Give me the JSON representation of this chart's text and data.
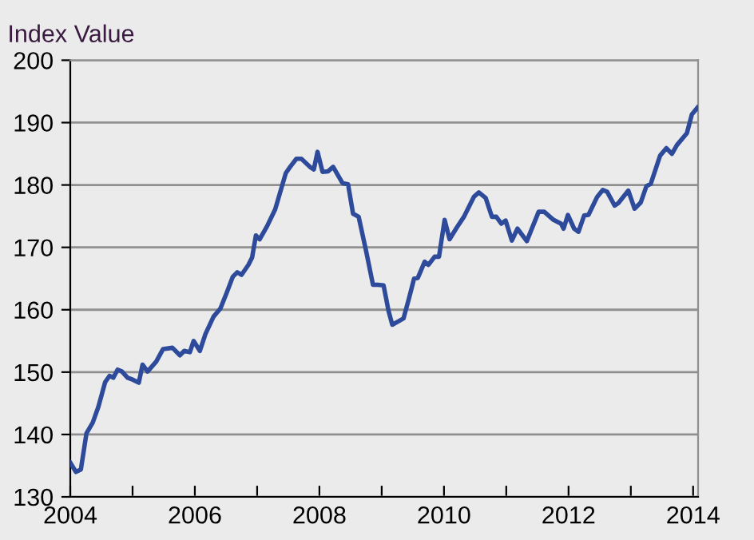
{
  "chart_data": {
    "type": "line",
    "ylabel": "Index Value",
    "x": [
      2004.0,
      2004.09,
      2004.17,
      2004.26,
      2004.36,
      2004.45,
      2004.56,
      2004.63,
      2004.69,
      2004.76,
      2004.83,
      2004.92,
      2005.0,
      2005.1,
      2005.16,
      2005.24,
      2005.38,
      2005.49,
      2005.64,
      2005.76,
      2005.83,
      2005.92,
      2005.98,
      2006.08,
      2006.17,
      2006.3,
      2006.41,
      2006.51,
      2006.61,
      2006.68,
      2006.75,
      2006.86,
      2006.92,
      2006.98,
      2007.04,
      2007.16,
      2007.29,
      2007.46,
      2007.53,
      2007.63,
      2007.71,
      2007.86,
      2007.91,
      2007.97,
      2008.05,
      2008.14,
      2008.22,
      2008.37,
      2008.46,
      2008.54,
      2008.63,
      2008.75,
      2008.86,
      2008.94,
      2009.03,
      2009.11,
      2009.17,
      2009.26,
      2009.35,
      2009.44,
      2009.52,
      2009.58,
      2009.69,
      2009.75,
      2009.85,
      2009.92,
      2010.01,
      2010.09,
      2010.2,
      2010.32,
      2010.48,
      2010.56,
      2010.67,
      2010.77,
      2010.84,
      2010.92,
      2010.99,
      2011.09,
      2011.18,
      2011.33,
      2011.52,
      2011.61,
      2011.76,
      2011.88,
      2011.92,
      2011.99,
      2012.09,
      2012.16,
      2012.25,
      2012.32,
      2012.46,
      2012.55,
      2012.62,
      2012.74,
      2012.8,
      2012.96,
      2013.06,
      2013.16,
      2013.25,
      2013.32,
      2013.47,
      2013.57,
      2013.66,
      2013.74,
      2013.9,
      2013.98,
      2014.07
    ],
    "series": [
      {
        "color": "#2e4a9a",
        "values": [
          135.5,
          134.0,
          134.4,
          140.2,
          141.9,
          144.4,
          148.4,
          149.4,
          149.1,
          150.4,
          150.1,
          149.1,
          148.8,
          148.3,
          151.2,
          150.1,
          151.7,
          153.7,
          153.9,
          152.7,
          153.4,
          153.2,
          155.0,
          153.4,
          156.1,
          158.9,
          160.2,
          162.7,
          165.3,
          166.0,
          165.6,
          167.2,
          168.4,
          171.9,
          171.3,
          173.4,
          176.1,
          181.9,
          182.9,
          184.2,
          184.2,
          182.8,
          182.5,
          185.3,
          182.1,
          182.2,
          182.9,
          180.3,
          180.1,
          175.4,
          174.9,
          169.4,
          164.0,
          164.0,
          163.9,
          159.8,
          157.6,
          158.1,
          158.6,
          161.9,
          165.0,
          165.1,
          167.7,
          167.2,
          168.5,
          168.5,
          174.4,
          171.3,
          173.1,
          174.9,
          178.1,
          178.8,
          177.9,
          174.9,
          174.9,
          173.8,
          174.3,
          171.1,
          173.0,
          171.0,
          175.7,
          175.7,
          174.4,
          173.8,
          173.0,
          175.2,
          173.0,
          172.5,
          175.1,
          175.2,
          178.1,
          179.2,
          178.9,
          176.7,
          177.1,
          179.1,
          176.2,
          177.2,
          179.8,
          180.2,
          184.7,
          185.9,
          185.0,
          186.4,
          188.3,
          191.3,
          192.4
        ]
      }
    ],
    "xlim": [
      2004,
      2014.08
    ],
    "xticks": [
      2004,
      {
        "value": 2005,
        "label": null
      },
      2006,
      {
        "value": 2007,
        "label": null
      },
      2008,
      {
        "value": 2009,
        "label": null
      },
      2010,
      {
        "value": 2011,
        "label": null
      },
      2012,
      {
        "value": 2013,
        "label": null
      },
      2014
    ],
    "ylim": [
      130,
      200
    ],
    "yticks": [
      130,
      140,
      150,
      160,
      170,
      180,
      190,
      200
    ],
    "grid": "y",
    "marker": "none",
    "line_style": "solid"
  }
}
